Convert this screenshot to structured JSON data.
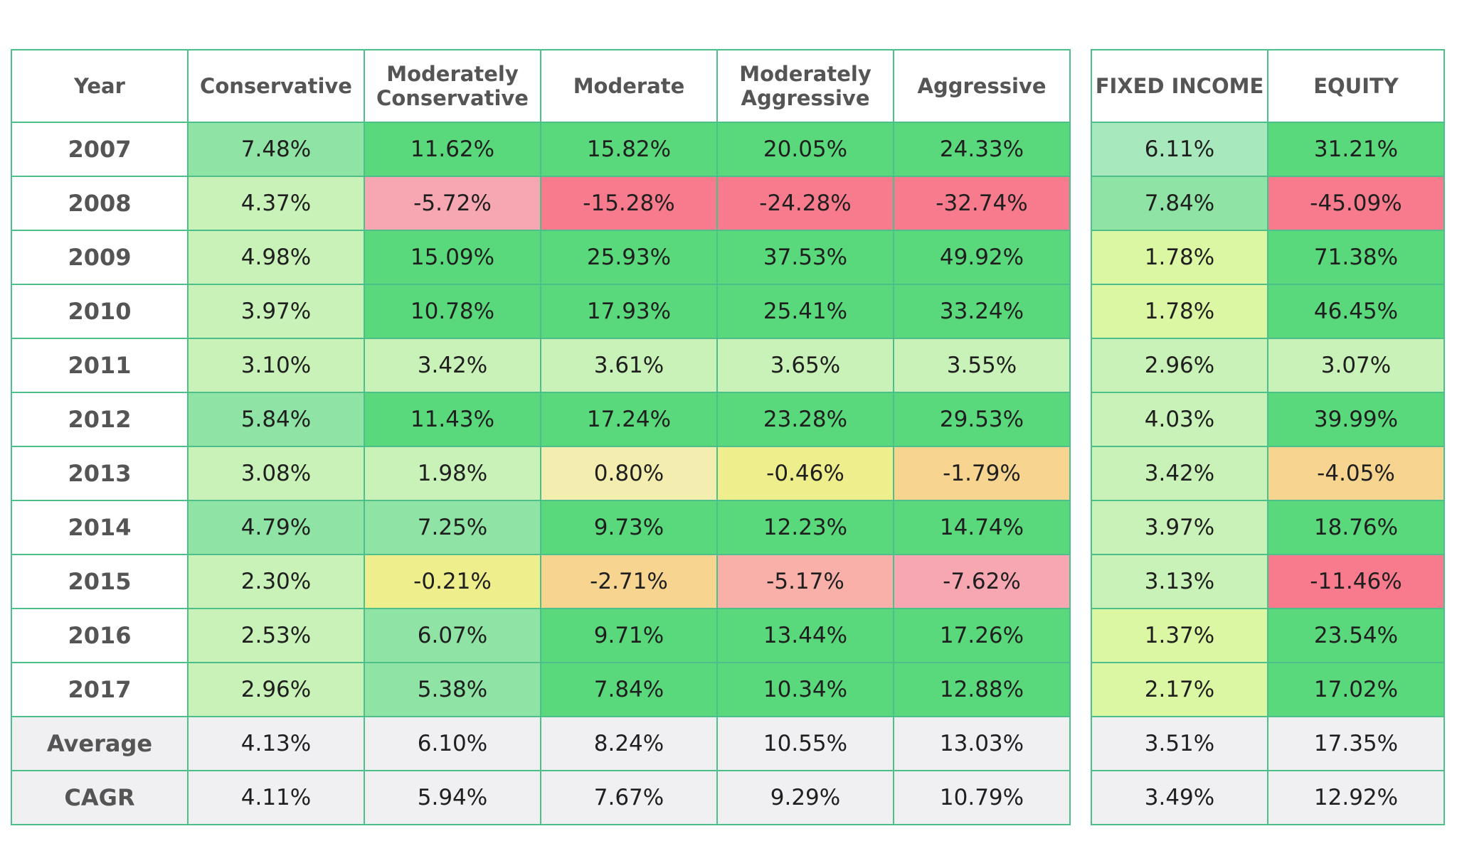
{
  "colors": {
    "border": "#4cbf8a",
    "header_bg": "#ffffff",
    "summary_bg": "#f0f0f2",
    "green_strong": "#5ad97c",
    "green_mid": "#8ee3a5",
    "green_light": "#a8e8bd",
    "green_pale": "#c9f2b8",
    "lime": "#dcf7a3",
    "cream": "#f3eeb0",
    "yellow": "#eeee8c",
    "orange": "#f7d490",
    "pink_light": "#f8b0a8",
    "pink": "#f7a7b1",
    "red": "#f77b8d"
  },
  "chart_data": {
    "type": "table",
    "columns": [
      "Year",
      "Conservative",
      "Moderately Conservative",
      "Moderate",
      "Moderately Aggressive",
      "Aggressive",
      "FIXED INCOME",
      "EQUITY"
    ],
    "rows": [
      {
        "year": "2007",
        "values": [
          "7.48%",
          "11.62%",
          "15.82%",
          "20.05%",
          "24.33%",
          "6.11%",
          "31.21%"
        ],
        "colors": [
          "green_mid",
          "green_strong",
          "green_strong",
          "green_strong",
          "green_strong",
          "green_light",
          "green_strong"
        ]
      },
      {
        "year": "2008",
        "values": [
          "4.37%",
          "-5.72%",
          "-15.28%",
          "-24.28%",
          "-32.74%",
          "7.84%",
          "-45.09%"
        ],
        "colors": [
          "green_pale",
          "pink",
          "red",
          "red",
          "red",
          "green_mid",
          "red"
        ]
      },
      {
        "year": "2009",
        "values": [
          "4.98%",
          "15.09%",
          "25.93%",
          "37.53%",
          "49.92%",
          "1.78%",
          "71.38%"
        ],
        "colors": [
          "green_pale",
          "green_strong",
          "green_strong",
          "green_strong",
          "green_strong",
          "lime",
          "green_strong"
        ]
      },
      {
        "year": "2010",
        "values": [
          "3.97%",
          "10.78%",
          "17.93%",
          "25.41%",
          "33.24%",
          "1.78%",
          "46.45%"
        ],
        "colors": [
          "green_pale",
          "green_strong",
          "green_strong",
          "green_strong",
          "green_strong",
          "lime",
          "green_strong"
        ]
      },
      {
        "year": "2011",
        "values": [
          "3.10%",
          "3.42%",
          "3.61%",
          "3.65%",
          "3.55%",
          "2.96%",
          "3.07%"
        ],
        "colors": [
          "green_pale",
          "green_pale",
          "green_pale",
          "green_pale",
          "green_pale",
          "green_pale",
          "green_pale"
        ]
      },
      {
        "year": "2012",
        "values": [
          "5.84%",
          "11.43%",
          "17.24%",
          "23.28%",
          "29.53%",
          "4.03%",
          "39.99%"
        ],
        "colors": [
          "green_mid",
          "green_strong",
          "green_strong",
          "green_strong",
          "green_strong",
          "green_pale",
          "green_strong"
        ]
      },
      {
        "year": "2013",
        "values": [
          "3.08%",
          "1.98%",
          "0.80%",
          "-0.46%",
          "-1.79%",
          "3.42%",
          "-4.05%"
        ],
        "colors": [
          "green_pale",
          "green_pale",
          "cream",
          "yellow",
          "orange",
          "green_pale",
          "orange"
        ]
      },
      {
        "year": "2014",
        "values": [
          "4.79%",
          "7.25%",
          "9.73%",
          "12.23%",
          "14.74%",
          "3.97%",
          "18.76%"
        ],
        "colors": [
          "green_mid",
          "green_mid",
          "green_strong",
          "green_strong",
          "green_strong",
          "green_pale",
          "green_strong"
        ]
      },
      {
        "year": "2015",
        "values": [
          "2.30%",
          "-0.21%",
          "-2.71%",
          "-5.17%",
          "-7.62%",
          "3.13%",
          "-11.46%"
        ],
        "colors": [
          "green_pale",
          "yellow",
          "orange",
          "pink_light",
          "pink",
          "green_pale",
          "red"
        ]
      },
      {
        "year": "2016",
        "values": [
          "2.53%",
          "6.07%",
          "9.71%",
          "13.44%",
          "17.26%",
          "1.37%",
          "23.54%"
        ],
        "colors": [
          "green_pale",
          "green_mid",
          "green_strong",
          "green_strong",
          "green_strong",
          "lime",
          "green_strong"
        ]
      },
      {
        "year": "2017",
        "values": [
          "2.96%",
          "5.38%",
          "7.84%",
          "10.34%",
          "12.88%",
          "2.17%",
          "17.02%"
        ],
        "colors": [
          "green_pale",
          "green_mid",
          "green_strong",
          "green_strong",
          "green_strong",
          "lime",
          "green_strong"
        ]
      }
    ],
    "summary": [
      {
        "label": "Average",
        "values": [
          "4.13%",
          "6.10%",
          "8.24%",
          "10.55%",
          "13.03%",
          "3.51%",
          "17.35%"
        ]
      },
      {
        "label": "CAGR",
        "values": [
          "4.11%",
          "5.94%",
          "7.67%",
          "9.29%",
          "10.79%",
          "3.49%",
          "12.92%"
        ]
      }
    ]
  }
}
